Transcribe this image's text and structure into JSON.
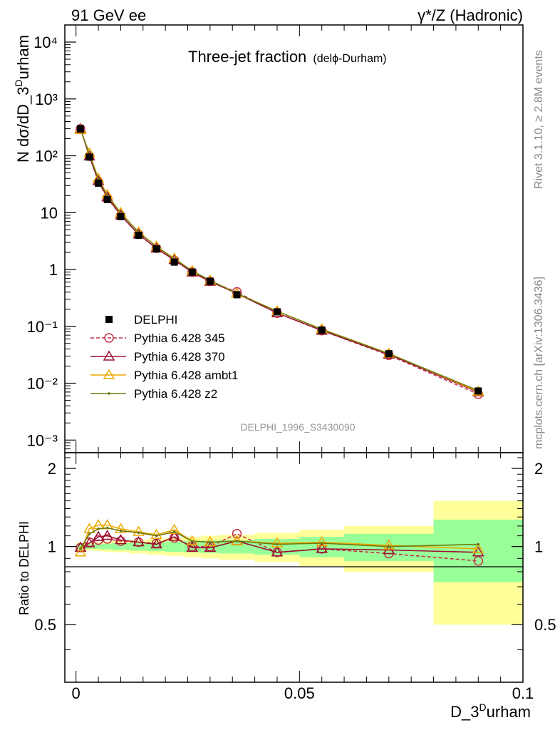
{
  "header": {
    "left": "91 GeV ee",
    "right": "γ*/Z (Hadronic)"
  },
  "side": {
    "rivet": "Rivet 3.1.10, ≥ 2.8M events",
    "mcplots": "mcplots.cern.ch [arXiv:1306.3436]"
  },
  "main_panel": {
    "title": "Three-jet fraction",
    "title_suffix": "(delϕ-Durham)",
    "watermark": "DELPHI_1996_S3430090",
    "y_axis_label": "N dσ/dD_3Durham",
    "y_ticks": [
      "10⁴",
      "10³",
      "10²",
      "10",
      "1",
      "10⁻¹",
      "10⁻²",
      "10⁻³"
    ]
  },
  "ratio_panel": {
    "y_axis_label": "Ratio to DELPHI",
    "y_ticks": [
      "2",
      "1",
      "0.5"
    ]
  },
  "x_axis": {
    "label": "D_3Durham",
    "ticks": [
      "0",
      "0.05",
      "0.1"
    ]
  },
  "legend": [
    {
      "name": "DELPHI",
      "color": "#000000",
      "marker": "square",
      "line": "none"
    },
    {
      "name": "Pythia 6.428 345",
      "color": "#c0304a",
      "marker": "circle",
      "line": "dashed"
    },
    {
      "name": "Pythia 6.428 370",
      "color": "#9a1030",
      "marker": "triangle",
      "line": "solid"
    },
    {
      "name": "Pythia 6.428 ambt1",
      "color": "#eea800",
      "marker": "triangle",
      "line": "solid"
    },
    {
      "name": "Pythia 6.428 z2",
      "color": "#6b7a10",
      "marker": "dot",
      "line": "solid"
    }
  ],
  "chart_data": {
    "type": "line",
    "x_range": [
      -0.0025,
      0.1
    ],
    "main_y_range": [
      0.0006,
      20000
    ],
    "main_y_scale": "log",
    "ratio_y_range": [
      0.3,
      2.3
    ],
    "ratio_y_scale": "log",
    "x": [
      0.001,
      0.003,
      0.005,
      0.007,
      0.01,
      0.014,
      0.018,
      0.022,
      0.026,
      0.03,
      0.036,
      0.045,
      0.055,
      0.07,
      0.09
    ],
    "x_bin_edges": [
      0,
      0.002,
      0.004,
      0.006,
      0.008,
      0.012,
      0.016,
      0.02,
      0.024,
      0.028,
      0.032,
      0.04,
      0.05,
      0.06,
      0.08,
      0.1
    ],
    "data": {
      "name": "DELPHI",
      "values": [
        300,
        95,
        33,
        17,
        8.5,
        4.0,
        2.3,
        1.35,
        0.9,
        0.62,
        0.36,
        0.18,
        0.086,
        0.033,
        0.0073
      ],
      "band_inner": [
        0.02,
        0.02,
        0.02,
        0.025,
        0.03,
        0.035,
        0.04,
        0.045,
        0.05,
        0.055,
        0.06,
        0.07,
        0.09,
        0.12,
        0.27
      ],
      "band_outer": [
        0.035,
        0.035,
        0.04,
        0.045,
        0.05,
        0.06,
        0.07,
        0.08,
        0.09,
        0.1,
        0.11,
        0.13,
        0.16,
        0.2,
        0.5
      ]
    },
    "series": [
      {
        "name": "Pythia 6.428 345",
        "ratio": [
          0.99,
          1.04,
          1.06,
          1.07,
          1.05,
          1.04,
          1.03,
          1.08,
          1.0,
          1.0,
          1.12,
          0.95,
          0.98,
          0.94,
          0.88
        ]
      },
      {
        "name": "Pythia 6.428 370",
        "ratio": [
          0.99,
          1.03,
          1.09,
          1.1,
          1.06,
          1.04,
          1.02,
          1.09,
          0.99,
          0.99,
          1.05,
          0.95,
          0.98,
          0.97,
          0.95
        ]
      },
      {
        "name": "Pythia 6.428 ambt1",
        "ratio": [
          0.95,
          1.17,
          1.21,
          1.21,
          1.17,
          1.14,
          1.11,
          1.16,
          1.05,
          1.04,
          1.05,
          1.03,
          1.04,
          1.01,
          0.98
        ]
      },
      {
        "name": "Pythia 6.428 z2",
        "ratio": [
          0.98,
          1.12,
          1.17,
          1.18,
          1.15,
          1.13,
          1.1,
          1.14,
          1.05,
          1.04,
          1.05,
          1.02,
          1.03,
          1.0,
          1.02
        ]
      }
    ]
  }
}
